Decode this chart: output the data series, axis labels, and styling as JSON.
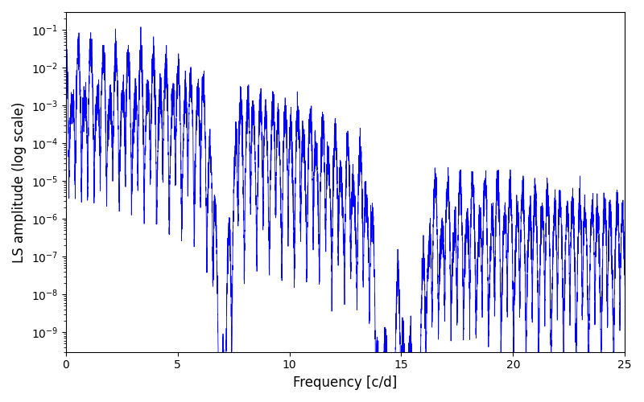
{
  "xlabel": "Frequency [c/d]",
  "ylabel": "LS amplitude (log scale)",
  "title": "",
  "line_color": "#0000ff",
  "line_width": 0.6,
  "xlim": [
    0,
    25
  ],
  "ylim": [
    3e-10,
    0.3
  ],
  "background_color": "#ffffff",
  "figsize": [
    8.0,
    5.0
  ],
  "dpi": 100,
  "freq_min": 0.0,
  "freq_max": 25.0,
  "n_points": 8000,
  "seed": 12345
}
